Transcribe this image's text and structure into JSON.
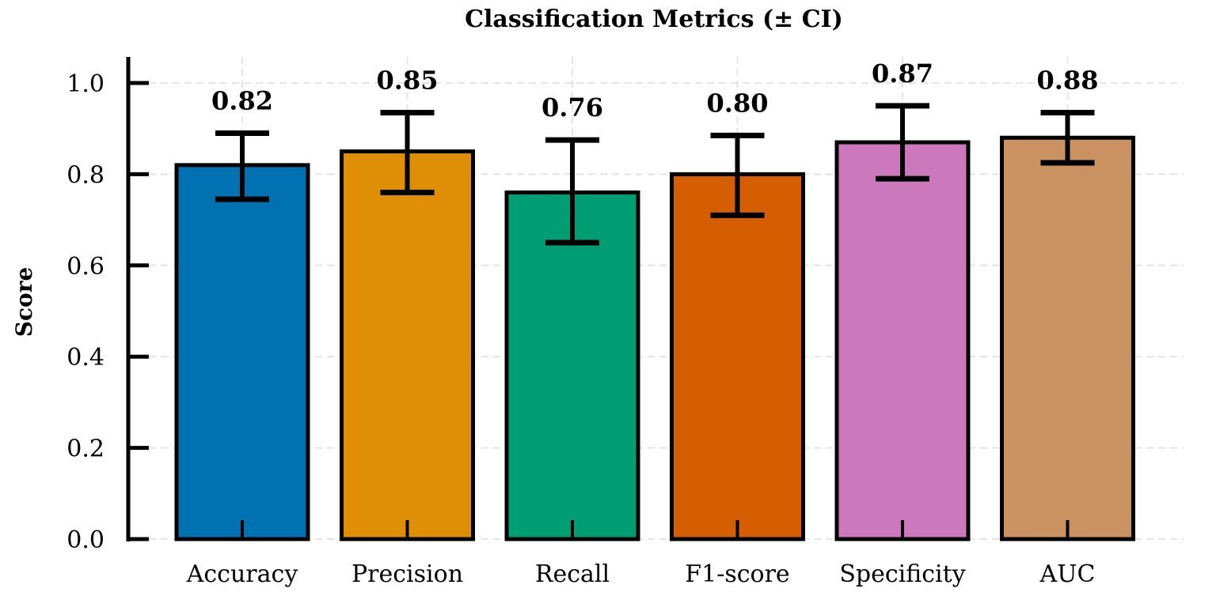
{
  "chart_data": {
    "type": "bar",
    "title": "Classification Metrics (± CI)",
    "xlabel": "",
    "ylabel": "Score",
    "ylim": [
      0,
      1.05
    ],
    "yticks": [
      0.0,
      0.2,
      0.4,
      0.6,
      0.8,
      1.0
    ],
    "ytick_labels": [
      "0.0",
      "0.2",
      "0.4",
      "0.6",
      "0.8",
      "1.0"
    ],
    "categories": [
      "Accuracy",
      "Precision",
      "Recall",
      "F1-score",
      "Specificity",
      "AUC"
    ],
    "values": [
      0.82,
      0.85,
      0.76,
      0.8,
      0.87,
      0.88
    ],
    "ci_lower": [
      0.745,
      0.76,
      0.65,
      0.71,
      0.79,
      0.825
    ],
    "ci_upper": [
      0.89,
      0.935,
      0.875,
      0.885,
      0.95,
      0.935
    ],
    "value_labels": [
      "0.82",
      "0.85",
      "0.76",
      "0.80",
      "0.87",
      "0.88"
    ],
    "colors": [
      "#0072B2",
      "#DE8F05",
      "#029E73",
      "#D55E00",
      "#CC78BC",
      "#CA9161"
    ],
    "grid": true
  }
}
